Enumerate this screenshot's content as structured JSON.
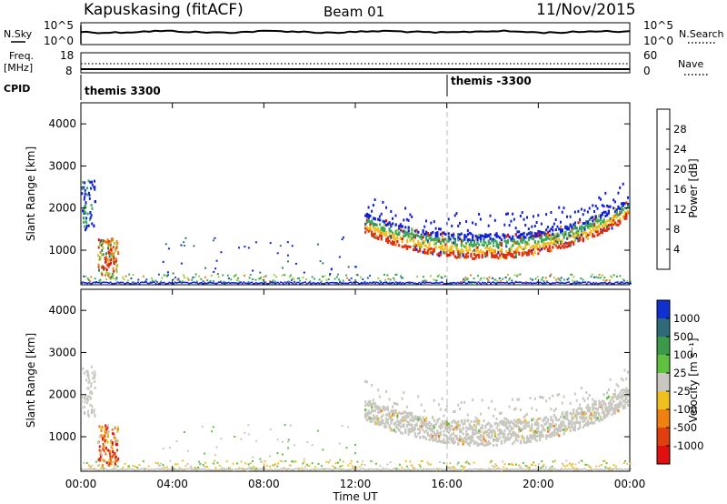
{
  "header": {
    "station": "Kapuskasing (fitACF)",
    "beam": "Beam 01",
    "date": "11/Nov/2015"
  },
  "side_labels": {
    "nsky": "N.Sky",
    "freq": "Freq.",
    "freq_unit": "[MHz]",
    "cpid": "CPID",
    "nsearch": "N.Search",
    "nave": "Nave"
  },
  "noise_panel": {
    "left_ticks": [
      "10^5",
      "10^0"
    ],
    "right_ticks": [
      "10^5",
      "10^0"
    ]
  },
  "freq_panel": {
    "left_ticks": [
      "18",
      "8"
    ],
    "right_ticks": [
      "60",
      "0"
    ]
  },
  "cpid_panel": {
    "labels": [
      "themis 3300",
      "themis -3300"
    ]
  },
  "colors": {
    "power": [
      "#1020d8",
      "#2050b0",
      "#2f7a5a",
      "#3aa85a",
      "#9ccf3a",
      "#f0c020",
      "#f08010",
      "#e03010",
      "#e01010"
    ],
    "velocity": [
      "#1030d0",
      "#2f6a7a",
      "#3a9a4a",
      "#60c040",
      "#c8c8c0",
      "#f0c020",
      "#f08010",
      "#e04010",
      "#e01010"
    ]
  },
  "chart_data": [
    {
      "type": "heatmap",
      "title": "",
      "xlabel": "Time UT",
      "ylabel": "Slant Range [km]",
      "x_ticks": [
        "00:00",
        "04:00",
        "08:00",
        "12:00",
        "16:00",
        "20:00",
        "00:00"
      ],
      "y_ticks": [
        "1000",
        "2000",
        "3000",
        "4000"
      ],
      "xlim": [
        0,
        24
      ],
      "ylim": [
        180,
        4500
      ],
      "colorbar_label": "Power [dB]",
      "colorbar_ticks": [
        "4",
        "8",
        "12",
        "16",
        "20",
        "24",
        "28"
      ],
      "approx_regions": [
        {
          "name": "early scatter",
          "t": [
            0,
            0.6
          ],
          "range_km": [
            1500,
            2700
          ],
          "power_db": 8
        },
        {
          "name": "near scatter 01UT",
          "t": [
            0.8,
            1.6
          ],
          "range_km": [
            400,
            1300
          ],
          "power_db": 20
        },
        {
          "name": "near-range ground band",
          "t": [
            0,
            24
          ],
          "range_km": [
            200,
            450
          ],
          "power_db": 12
        },
        {
          "name": "evening arc",
          "t": [
            12.5,
            23.8
          ],
          "range_km": [
            700,
            2600
          ],
          "power_db": 24
        }
      ]
    },
    {
      "type": "heatmap",
      "title": "",
      "xlabel": "Time UT",
      "ylabel": "Slant Range [km]",
      "x_ticks": [
        "00:00",
        "04:00",
        "08:00",
        "12:00",
        "16:00",
        "20:00",
        "00:00"
      ],
      "y_ticks": [
        "1000",
        "2000",
        "3000",
        "4000"
      ],
      "xlim": [
        0,
        24
      ],
      "ylim": [
        180,
        4500
      ],
      "colorbar_label": "Velocity [m s⁻¹]",
      "colorbar_ticks": [
        "1000",
        "500",
        "100",
        "25",
        "-25",
        "-100",
        "-500",
        "-1000"
      ],
      "approx_regions": [
        {
          "name": "early scatter",
          "t": [
            0,
            0.6
          ],
          "range_km": [
            1500,
            2700
          ],
          "velocity": 0
        },
        {
          "name": "near scatter 01UT",
          "t": [
            0.8,
            1.6
          ],
          "range_km": [
            400,
            1300
          ],
          "velocity": -300
        },
        {
          "name": "near-range ground band",
          "t": [
            0,
            24
          ],
          "range_km": [
            200,
            450
          ],
          "velocity": -100
        },
        {
          "name": "evening arc",
          "t": [
            12.5,
            23.8
          ],
          "range_km": [
            700,
            2600
          ],
          "velocity": 0
        }
      ]
    }
  ]
}
